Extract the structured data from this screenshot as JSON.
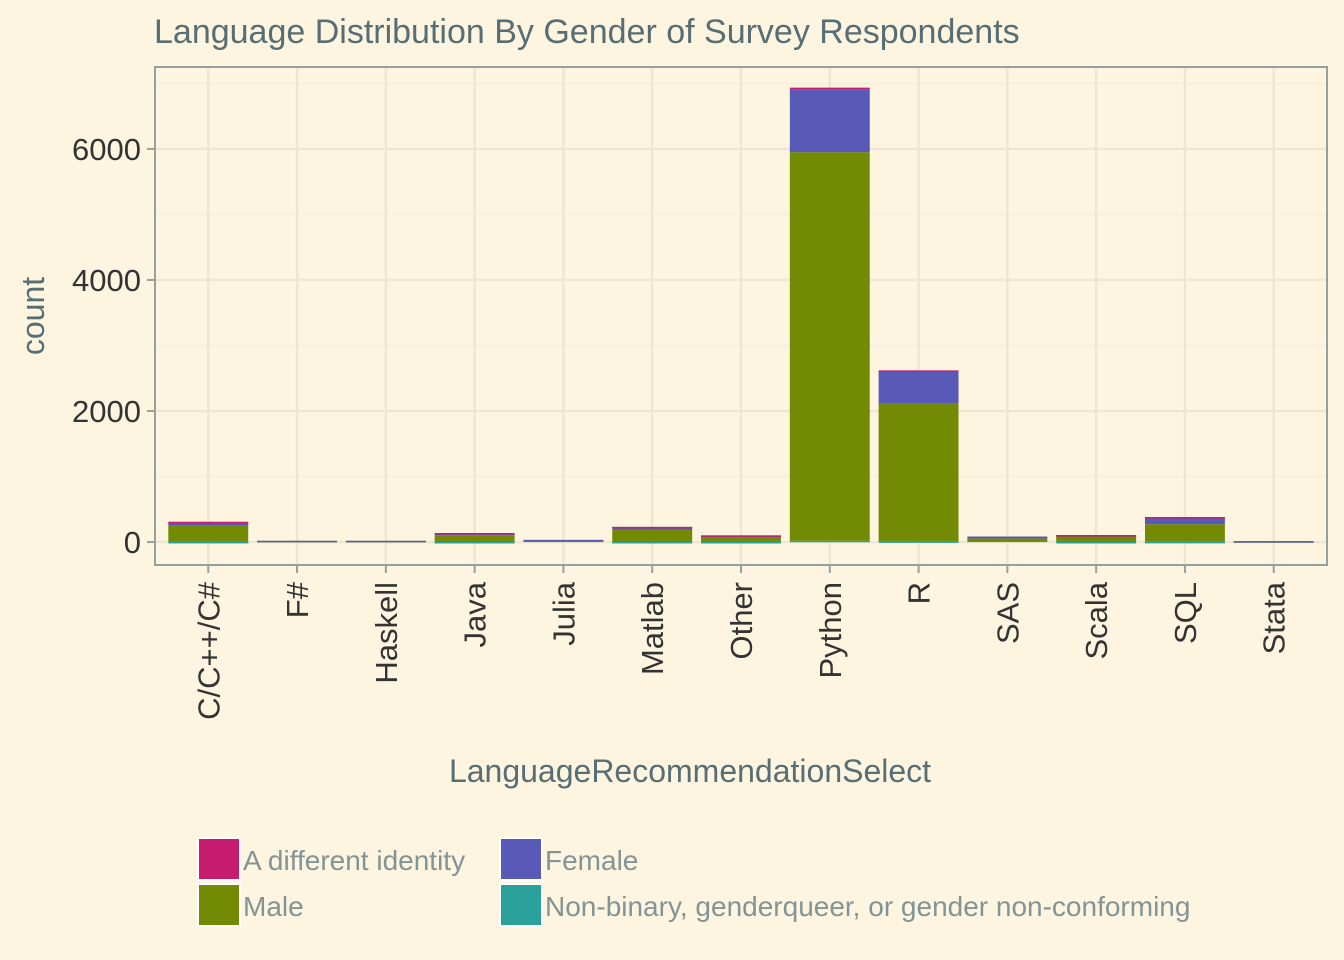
{
  "chart_data": {
    "type": "bar",
    "stacked": true,
    "title": "Language Distribution By Gender of Survey Respondents",
    "xlabel": "LanguageRecommendationSelect",
    "ylabel": "count",
    "ylim": [
      -350,
      7250
    ],
    "yticks": [
      0,
      2000,
      4000,
      6000
    ],
    "grid": true,
    "legend_position": "bottom",
    "categories": [
      "C/C++/C#",
      "F#",
      "Haskell",
      "Java",
      "Julia",
      "Matlab",
      "Other",
      "Python",
      "R",
      "SAS",
      "Scala",
      "SQL",
      "Stata"
    ],
    "series": [
      {
        "name": "Non-binary, genderqueer, or gender non-conforming",
        "color": "#2aa198",
        "values": [
          2,
          0,
          0,
          1,
          0,
          1,
          1,
          20,
          10,
          0,
          1,
          3,
          0
        ]
      },
      {
        "name": "Male",
        "color": "#738a05",
        "values": [
          245,
          18,
          18,
          105,
          30,
          185,
          80,
          5930,
          2100,
          55,
          90,
          270,
          12
        ]
      },
      {
        "name": "Female",
        "color": "#5959b8",
        "values": [
          60,
          2,
          2,
          30,
          4,
          45,
          20,
          960,
          500,
          30,
          15,
          105,
          3
        ]
      },
      {
        "name": "A different identity",
        "color": "#c61b6e",
        "values": [
          3,
          0,
          0,
          2,
          0,
          1,
          2,
          25,
          10,
          0,
          1,
          4,
          0
        ]
      }
    ],
    "legend_order": [
      "A different identity",
      "Female",
      "Male",
      "Non-binary, genderqueer, or gender non-conforming"
    ]
  }
}
